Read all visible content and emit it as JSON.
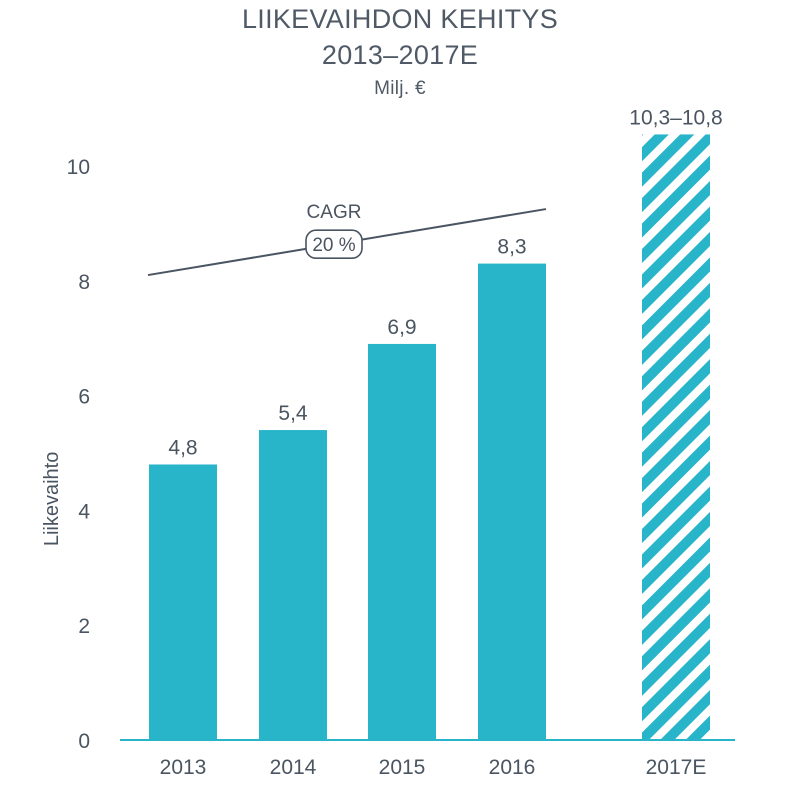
{
  "chart_data": {
    "type": "bar",
    "title": "LIIKEVAIHDON KEHITYS",
    "subtitle": "2013–2017E",
    "unit": "Milj. €",
    "ylabel": "Liikevaihto",
    "xlabel": "",
    "ylim": [
      0,
      10.5
    ],
    "yticks": [
      0,
      2,
      4,
      6,
      8,
      10
    ],
    "categories": [
      "2013",
      "2014",
      "2015",
      "2016",
      "2017E"
    ],
    "values": [
      4.8,
      5.4,
      6.9,
      8.3,
      10.55
    ],
    "value_labels": [
      "4,8",
      "5,4",
      "6,9",
      "8,3",
      "10,3–10,8"
    ],
    "estimate_range": [
      10.3,
      10.8
    ],
    "grid": false,
    "annotation": {
      "label": "CAGR",
      "value": "20 %",
      "line_start": {
        "x": "2013",
        "y": 8.1
      },
      "line_end": {
        "x": "2016",
        "y": 9.25
      }
    },
    "colors": {
      "bar": "#29b5c9",
      "text": "#4a5561",
      "axis": "#29b5c9",
      "trend": "#4a5561"
    }
  }
}
